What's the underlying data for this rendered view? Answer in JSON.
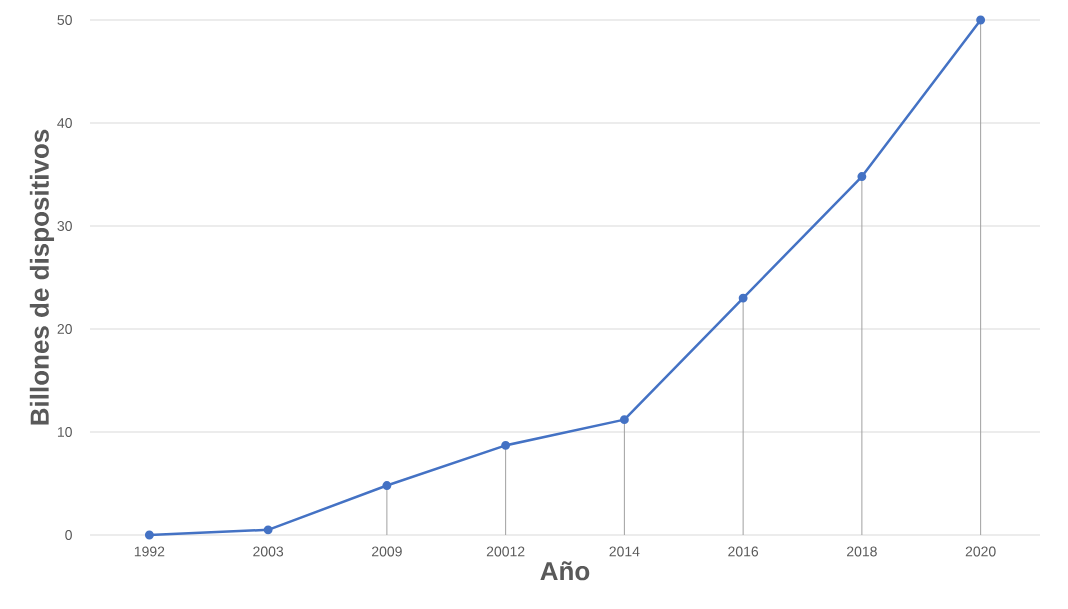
{
  "chart_data": {
    "type": "line",
    "xlabel": "Año",
    "ylabel": "Billones de dispositivos",
    "categories": [
      "1992",
      "2003",
      "2009",
      "20012",
      "2014",
      "2016",
      "2018",
      "2020"
    ],
    "series": [
      {
        "color": "#4472c4",
        "values": [
          0,
          0.5,
          4.8,
          8.7,
          11.2,
          23,
          34.8,
          50
        ],
        "errors": [
          [
            0,
            0
          ],
          null,
          [
            0,
            4.8
          ],
          [
            0,
            8.7
          ],
          [
            0,
            11.2
          ],
          [
            0,
            23
          ],
          [
            0,
            34.8
          ],
          [
            0,
            50
          ]
        ]
      }
    ],
    "ylim": [
      0,
      50
    ],
    "yticks": [
      0,
      10,
      20,
      30,
      40,
      50
    ],
    "grid": "y",
    "marker": "circle",
    "line_style": "solid"
  }
}
